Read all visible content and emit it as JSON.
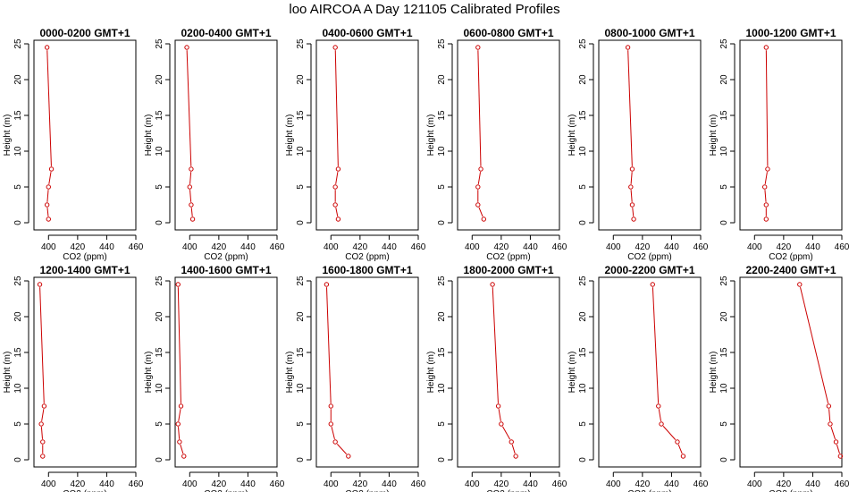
{
  "title": "loo AIRCOA A  Day 121105  Calibrated Profiles",
  "chart_data": {
    "type": "line",
    "xlabel": "CO2 (ppm)",
    "ylabel": "Height (m)",
    "xlim": [
      390,
      460
    ],
    "ylim": [
      -1,
      25.5
    ],
    "xticks": [
      400,
      420,
      440,
      460
    ],
    "yticks": [
      0,
      5,
      10,
      15,
      20,
      25
    ],
    "series_color": "#cc0000",
    "panels": [
      {
        "title": "0000-0200 GMT+1",
        "points": [
          {
            "x": 400,
            "y": 0.5
          },
          {
            "x": 399,
            "y": 2.5
          },
          {
            "x": 400,
            "y": 5
          },
          {
            "x": 402,
            "y": 7.5
          },
          {
            "x": 399,
            "y": 24.5
          }
        ]
      },
      {
        "title": "0200-0400 GMT+1",
        "points": [
          {
            "x": 402,
            "y": 0.5
          },
          {
            "x": 401,
            "y": 2.5
          },
          {
            "x": 400,
            "y": 5
          },
          {
            "x": 401,
            "y": 7.5
          },
          {
            "x": 398,
            "y": 24.5
          }
        ]
      },
      {
        "title": "0400-0600 GMT+1",
        "points": [
          {
            "x": 405,
            "y": 0.5
          },
          {
            "x": 403,
            "y": 2.5
          },
          {
            "x": 403,
            "y": 5
          },
          {
            "x": 405,
            "y": 7.5
          },
          {
            "x": 403,
            "y": 24.5
          }
        ]
      },
      {
        "title": "0600-0800 GMT+1",
        "points": [
          {
            "x": 408,
            "y": 0.5
          },
          {
            "x": 404,
            "y": 2.5
          },
          {
            "x": 404,
            "y": 5
          },
          {
            "x": 406,
            "y": 7.5
          },
          {
            "x": 404,
            "y": 24.5
          }
        ]
      },
      {
        "title": "0800-1000 GMT+1",
        "points": [
          {
            "x": 414,
            "y": 0.5
          },
          {
            "x": 413,
            "y": 2.5
          },
          {
            "x": 412,
            "y": 5
          },
          {
            "x": 413,
            "y": 7.5
          },
          {
            "x": 410,
            "y": 24.5
          }
        ]
      },
      {
        "title": "1000-1200 GMT+1",
        "points": [
          {
            "x": 408,
            "y": 0.5
          },
          {
            "x": 408,
            "y": 2.5
          },
          {
            "x": 407,
            "y": 5
          },
          {
            "x": 409,
            "y": 7.5
          },
          {
            "x": 408,
            "y": 24.5
          }
        ]
      },
      {
        "title": "1200-1400 GMT+1",
        "points": [
          {
            "x": 396,
            "y": 0.5
          },
          {
            "x": 396,
            "y": 2.5
          },
          {
            "x": 395,
            "y": 5
          },
          {
            "x": 397,
            "y": 7.5
          },
          {
            "x": 394,
            "y": 24.5
          }
        ]
      },
      {
        "title": "1400-1600 GMT+1",
        "points": [
          {
            "x": 396,
            "y": 0.5
          },
          {
            "x": 393,
            "y": 2.5
          },
          {
            "x": 392,
            "y": 5
          },
          {
            "x": 394,
            "y": 7.5
          },
          {
            "x": 392,
            "y": 24.5
          }
        ]
      },
      {
        "title": "1600-1800 GMT+1",
        "points": [
          {
            "x": 412,
            "y": 0.5
          },
          {
            "x": 403,
            "y": 2.5
          },
          {
            "x": 400,
            "y": 5
          },
          {
            "x": 400,
            "y": 7.5
          },
          {
            "x": 397,
            "y": 24.5
          }
        ]
      },
      {
        "title": "1800-2000 GMT+1",
        "points": [
          {
            "x": 430,
            "y": 0.5
          },
          {
            "x": 427,
            "y": 2.5
          },
          {
            "x": 420,
            "y": 5
          },
          {
            "x": 418,
            "y": 7.5
          },
          {
            "x": 414,
            "y": 24.5
          }
        ]
      },
      {
        "title": "2000-2200 GMT+1",
        "points": [
          {
            "x": 448,
            "y": 0.5
          },
          {
            "x": 444,
            "y": 2.5
          },
          {
            "x": 433,
            "y": 5
          },
          {
            "x": 431,
            "y": 7.5
          },
          {
            "x": 427,
            "y": 24.5
          }
        ]
      },
      {
        "title": "2200-2400 GMT+1",
        "points": [
          {
            "x": 459,
            "y": 0.5
          },
          {
            "x": 456,
            "y": 2.5
          },
          {
            "x": 452,
            "y": 5
          },
          {
            "x": 451,
            "y": 7.5
          },
          {
            "x": 431,
            "y": 24.5
          }
        ]
      }
    ]
  }
}
